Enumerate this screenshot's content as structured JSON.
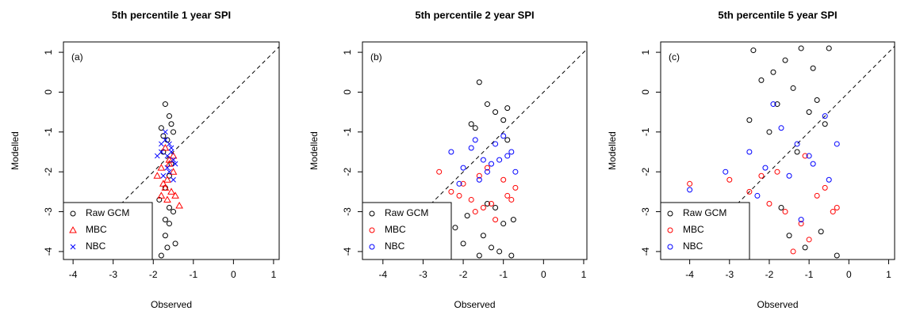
{
  "chart_data": [
    {
      "type": "scatter",
      "title": "5th percentile 1 year SPI",
      "x_label": "Observed",
      "y_label": "Modelled",
      "annotation": "(a)",
      "xlim": [
        -4.24,
        1.14
      ],
      "ylim": [
        -4.2,
        1.26
      ],
      "xticks": [
        -4,
        -3,
        -2,
        -1,
        0,
        1
      ],
      "yticks": [
        -4,
        -3,
        -2,
        -1,
        0,
        1
      ],
      "legend": "bottom-left",
      "series": [
        {
          "name": "Raw  GCM",
          "color": "#000000",
          "marker": "circle",
          "x": [
            -1.7,
            -1.6,
            -1.8,
            -1.5,
            -1.65,
            -1.75,
            -1.55,
            -1.6,
            -1.7,
            -1.85,
            -1.5,
            -1.6,
            -1.7,
            -1.45,
            -1.8,
            -1.65,
            -1.55,
            -1.7,
            -1.6,
            -1.75
          ],
          "y": [
            -0.3,
            -0.6,
            -0.9,
            -1.0,
            -1.2,
            -1.5,
            -1.8,
            -2.1,
            -2.4,
            -2.7,
            -3.0,
            -3.3,
            -3.6,
            -3.8,
            -4.1,
            -3.9,
            -0.8,
            -3.2,
            -2.9,
            -1.1
          ]
        },
        {
          "name": "MBC",
          "color": "#ff0000",
          "marker": "triangle",
          "x": [
            -1.7,
            -1.6,
            -1.8,
            -1.5,
            -1.65,
            -1.75,
            -1.55,
            -1.9,
            -1.45,
            -1.35,
            -1.7,
            -1.6,
            -1.8,
            -1.5,
            -1.65
          ],
          "y": [
            -1.4,
            -1.7,
            -1.9,
            -2.0,
            -2.2,
            -2.3,
            -2.5,
            -2.1,
            -2.6,
            -2.85,
            -2.4,
            -1.8,
            -2.6,
            -1.6,
            -2.7
          ]
        },
        {
          "name": "NBC",
          "color": "#0000ff",
          "marker": "x",
          "x": [
            -1.7,
            -1.6,
            -1.8,
            -1.5,
            -1.65,
            -1.75,
            -1.55,
            -1.9,
            -1.45,
            -1.6,
            -1.7,
            -1.5,
            -1.8,
            -1.65,
            -1.55
          ],
          "y": [
            -1.0,
            -1.3,
            -1.5,
            -1.7,
            -1.9,
            -2.1,
            -1.4,
            -1.6,
            -1.8,
            -2.0,
            -1.2,
            -2.2,
            -1.3,
            -1.6,
            -1.5
          ]
        }
      ]
    },
    {
      "type": "scatter",
      "title": "5th percentile 2 year SPI",
      "x_label": "Observed",
      "y_label": "Modelled",
      "annotation": "(b)",
      "xlim": [
        -4.51,
        1.08
      ],
      "ylim": [
        -4.2,
        1.26
      ],
      "xticks": [
        -4,
        -3,
        -2,
        -1,
        0,
        1
      ],
      "yticks": [
        -4,
        -3,
        -2,
        -1,
        0,
        1
      ],
      "legend": "bottom-left",
      "series": [
        {
          "name": "Raw  GCM",
          "color": "#000000",
          "marker": "circle",
          "x": [
            -1.6,
            -1.4,
            -1.2,
            -0.9,
            -1.8,
            -1.0,
            -1.3,
            -2.0,
            -0.8,
            -1.5,
            -1.1,
            -1.9,
            -0.75,
            -1.4,
            -1.7,
            -1.2,
            -1.0,
            -1.6,
            -2.2,
            -0.9
          ],
          "y": [
            0.25,
            -0.3,
            -0.5,
            -0.4,
            -0.8,
            -3.3,
            -3.9,
            -3.8,
            -4.1,
            -3.6,
            -4.0,
            -3.1,
            -3.2,
            -2.8,
            -0.9,
            -2.9,
            -0.7,
            -4.1,
            -3.4,
            -1.2
          ]
        },
        {
          "name": "MBC",
          "color": "#ff0000",
          "marker": "circle",
          "x": [
            -2.6,
            -2.3,
            -2.0,
            -1.8,
            -1.5,
            -1.2,
            -0.9,
            -0.7,
            -1.6,
            -1.3,
            -1.0,
            -2.1,
            -1.7,
            -1.4,
            -0.8
          ],
          "y": [
            -2.0,
            -2.5,
            -2.3,
            -2.7,
            -2.9,
            -3.2,
            -2.6,
            -2.4,
            -2.1,
            -2.8,
            -2.2,
            -2.6,
            -3.0,
            -1.9,
            -2.7
          ]
        },
        {
          "name": "NBC",
          "color": "#0000ff",
          "marker": "circle",
          "x": [
            -2.3,
            -2.0,
            -1.8,
            -1.5,
            -1.2,
            -0.9,
            -0.7,
            -1.6,
            -1.3,
            -1.0,
            -2.1,
            -1.7,
            -1.4,
            -0.8,
            -1.1
          ],
          "y": [
            -1.5,
            -1.9,
            -1.4,
            -1.7,
            -1.3,
            -1.6,
            -2.0,
            -2.2,
            -1.8,
            -1.1,
            -2.3,
            -1.2,
            -2.0,
            -1.5,
            -1.7
          ]
        }
      ]
    },
    {
      "type": "scatter",
      "title": "5th percentile 5 year SPI",
      "x_label": "Observed",
      "y_label": "Modelled",
      "annotation": "(c)",
      "xlim": [
        -4.73,
        1.15
      ],
      "ylim": [
        -4.2,
        1.26
      ],
      "xticks": [
        -4,
        -3,
        -2,
        -1,
        0,
        1
      ],
      "yticks": [
        -4,
        -3,
        -2,
        -1,
        0,
        1
      ],
      "legend": "bottom-left",
      "series": [
        {
          "name": "Raw  GCM",
          "color": "#000000",
          "marker": "circle",
          "x": [
            -2.4,
            -2.2,
            -1.9,
            -1.6,
            -1.2,
            -0.9,
            -0.5,
            -1.8,
            -1.4,
            -1.0,
            -0.6,
            -2.0,
            -1.5,
            -1.1,
            -0.7,
            -0.3,
            -1.7,
            -1.3,
            -0.8,
            -2.5
          ],
          "y": [
            1.05,
            0.3,
            0.5,
            0.8,
            1.1,
            0.6,
            1.1,
            -0.3,
            0.1,
            -0.5,
            -0.8,
            -1.0,
            -3.6,
            -3.9,
            -3.5,
            -4.1,
            -2.9,
            -1.5,
            -0.2,
            -0.7
          ]
        },
        {
          "name": "MBC",
          "color": "#ff0000",
          "marker": "circle",
          "x": [
            -4.0,
            -3.0,
            -2.5,
            -2.0,
            -1.6,
            -1.2,
            -0.8,
            -0.4,
            -1.8,
            -1.4,
            -1.0,
            -0.6,
            -2.2,
            -0.3,
            -1.1
          ],
          "y": [
            -2.3,
            -2.2,
            -2.5,
            -2.8,
            -3.0,
            -3.3,
            -2.6,
            -3.0,
            -2.0,
            -4.0,
            -3.7,
            -2.4,
            -2.1,
            -2.9,
            -1.6
          ]
        },
        {
          "name": "NBC",
          "color": "#0000ff",
          "marker": "circle",
          "x": [
            -4.0,
            -3.1,
            -2.5,
            -2.1,
            -1.7,
            -1.3,
            -0.9,
            -0.5,
            -1.9,
            -1.5,
            -1.0,
            -0.6,
            -2.3,
            -0.3,
            -1.2
          ],
          "y": [
            -2.45,
            -2.0,
            -1.5,
            -1.9,
            -0.9,
            -1.3,
            -1.8,
            -2.2,
            -0.3,
            -2.1,
            -1.6,
            -0.6,
            -2.6,
            -1.3,
            -3.2
          ]
        }
      ]
    }
  ]
}
